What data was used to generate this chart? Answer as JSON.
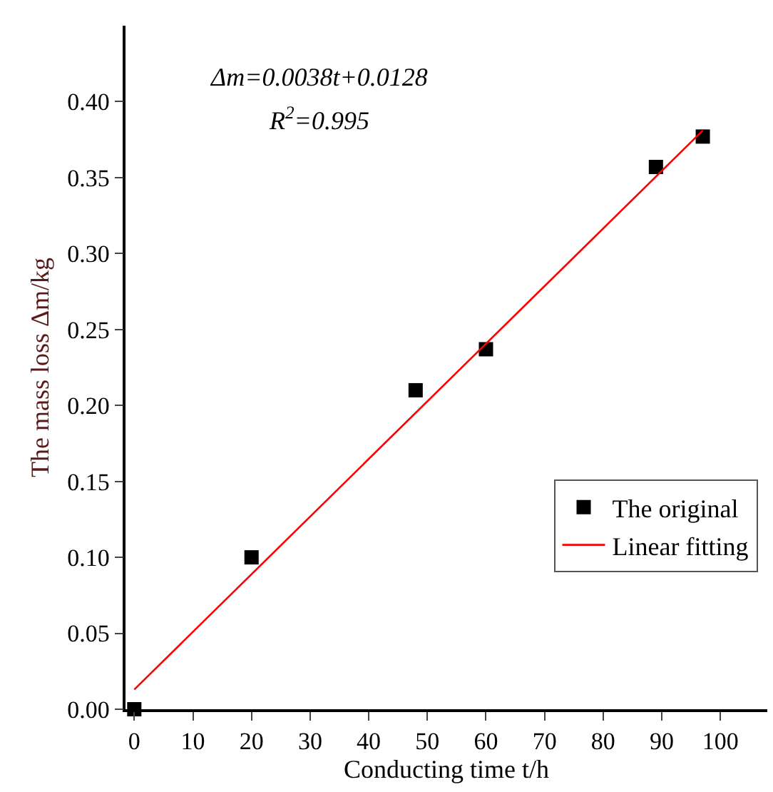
{
  "chart_data": {
    "type": "scatter",
    "xlabel": "Conducting time t/h",
    "ylabel": "The mass loss Δm/kg",
    "series": [
      {
        "name": "The original",
        "color": "#000000",
        "marker": "square",
        "x": [
          0,
          20,
          48,
          60,
          89,
          97
        ],
        "values": [
          0,
          0.1,
          0.21,
          0.237,
          0.357,
          0.377
        ]
      },
      {
        "name": "Linear fitting",
        "type": "line",
        "color": "#ff0000",
        "marker": "none",
        "line_style": "solid",
        "x": [
          0,
          97
        ],
        "values": [
          0.013,
          0.381
        ]
      }
    ],
    "annotations": [
      "Δm=0.0038t+0.0128",
      "R$^{2}$=0.995"
    ],
    "xlim": [
      -1.5,
      108
    ],
    "xticks": [
      0,
      10,
      20,
      30,
      40,
      50,
      60,
      70,
      80,
      90,
      100
    ],
    "ylim": [
      0,
      0.45
    ],
    "yticks": [
      {
        "value": 0,
        "label": "0.00"
      },
      {
        "value": 0.05,
        "label": "0.05"
      },
      {
        "value": 0.1,
        "label": "0.10"
      },
      {
        "value": 0.15,
        "label": "0.15"
      },
      {
        "value": 0.2,
        "label": "0.20"
      },
      {
        "value": 0.25,
        "label": "0.25"
      },
      {
        "value": 0.3,
        "label": "0.30"
      },
      {
        "value": 0.35,
        "label": "0.35"
      },
      {
        "value": 0.4,
        "label": "0.40"
      }
    ],
    "grid": false,
    "legend": "bottom right"
  }
}
